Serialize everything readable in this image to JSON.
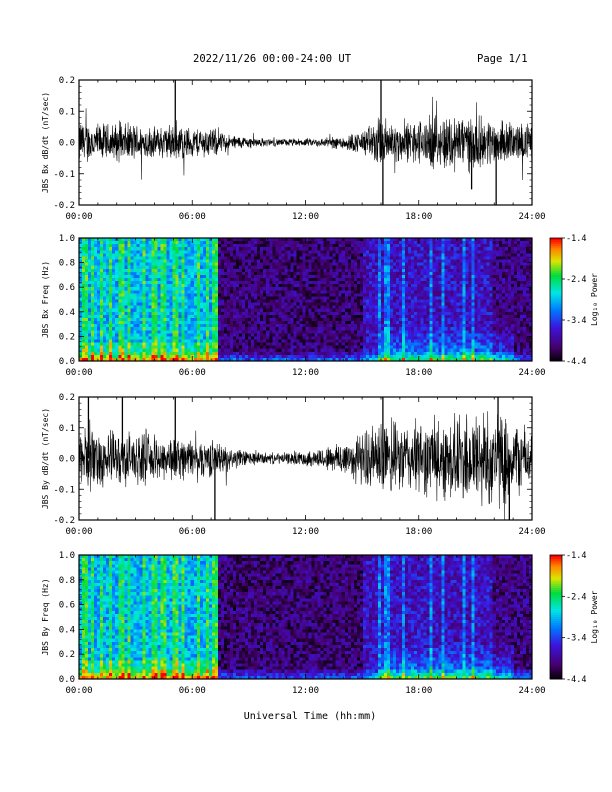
{
  "header": {
    "date_range": "2022/11/26  00:00-24:00 UT",
    "page": "Page 1/1"
  },
  "xaxis": {
    "label": "Universal Time (hh:mm)",
    "ticks": [
      "00:00",
      "06:00",
      "12:00",
      "18:00",
      "24:00"
    ],
    "range_hours": [
      0,
      24
    ]
  },
  "chart_data": [
    {
      "type": "line",
      "ylabel": "JBS Bx dB/dt (nT/sec)",
      "ylim": [
        -0.2,
        0.2
      ],
      "yticks": [
        "0.2",
        "0.1",
        "0.0",
        "-0.1",
        "-0.2"
      ],
      "xlim": [
        0,
        24
      ],
      "x_hours": [
        0,
        1,
        2,
        3,
        4,
        5,
        6,
        7,
        8,
        9,
        10,
        11,
        12,
        13,
        14,
        15,
        16,
        17,
        18,
        19,
        20,
        21,
        22,
        23,
        24
      ],
      "envelope": [
        0.06,
        0.05,
        0.05,
        0.05,
        0.04,
        0.05,
        0.04,
        0.04,
        0.02,
        0.015,
        0.01,
        0.01,
        0.01,
        0.012,
        0.02,
        0.03,
        0.07,
        0.05,
        0.06,
        0.07,
        0.08,
        0.07,
        0.06,
        0.05,
        0.05
      ],
      "spikes": [
        {
          "x": 5.1,
          "y": 0.2
        },
        {
          "x": 16.0,
          "y": 0.2
        },
        {
          "x": 16.1,
          "y": -0.2
        },
        {
          "x": 20.8,
          "y": -0.15
        },
        {
          "x": 22.1,
          "y": -0.2
        }
      ]
    },
    {
      "type": "heatmap",
      "ylabel": "JBS Bx Freq (Hz)",
      "ylim": [
        0,
        1.0
      ],
      "yticks": [
        "1.0",
        "0.8",
        "0.6",
        "0.4",
        "0.2",
        "0.0"
      ],
      "xlim": [
        0,
        24
      ],
      "colorbar": {
        "label": "Log₁₀ Power",
        "range": [
          -4.4,
          -1.4
        ],
        "ticks": [
          "-1.4",
          "-2.4",
          "-3.4",
          "-4.4"
        ]
      }
    },
    {
      "type": "line",
      "ylabel": "JBS By dB/dt (nT/sec)",
      "ylim": [
        -0.2,
        0.2
      ],
      "yticks": [
        "0.2",
        "0.1",
        "0.0",
        "-0.1",
        "-0.2"
      ],
      "xlim": [
        0,
        24
      ],
      "x_hours": [
        0,
        1,
        2,
        3,
        4,
        5,
        6,
        7,
        8,
        9,
        10,
        11,
        12,
        13,
        14,
        15,
        16,
        17,
        18,
        19,
        20,
        21,
        22,
        23,
        24
      ],
      "envelope": [
        0.09,
        0.08,
        0.07,
        0.07,
        0.06,
        0.06,
        0.05,
        0.05,
        0.03,
        0.02,
        0.015,
        0.015,
        0.02,
        0.03,
        0.05,
        0.07,
        0.1,
        0.09,
        0.1,
        0.1,
        0.12,
        0.13,
        0.14,
        0.1,
        0.08
      ],
      "spikes": [
        {
          "x": 0.5,
          "y": 0.2
        },
        {
          "x": 2.3,
          "y": 0.2
        },
        {
          "x": 5.1,
          "y": 0.2
        },
        {
          "x": 7.2,
          "y": -0.2
        },
        {
          "x": 16.1,
          "y": 0.2
        },
        {
          "x": 22.2,
          "y": 0.2
        },
        {
          "x": 22.8,
          "y": -0.2
        }
      ]
    },
    {
      "type": "heatmap",
      "ylabel": "JBS By Freq (Hz)",
      "ylim": [
        0,
        1.0
      ],
      "yticks": [
        "1.0",
        "0.8",
        "0.6",
        "0.4",
        "0.2",
        "0.0"
      ],
      "xlim": [
        0,
        24
      ],
      "colorbar": {
        "label": "Log₁₀ Power",
        "range": [
          -4.4,
          -1.4
        ],
        "ticks": [
          "-1.4",
          "-2.4",
          "-3.4",
          "-4.4"
        ]
      }
    }
  ]
}
